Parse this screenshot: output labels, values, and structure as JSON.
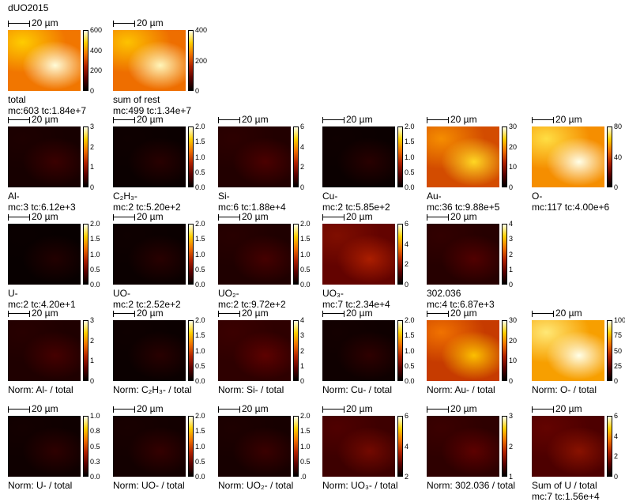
{
  "title": "dUO2015",
  "scale_label": "20 µm",
  "rows": [
    [
      {
        "label": "total",
        "stats": "mc:603 tc:1.84e+7",
        "ticks": [
          "600",
          "400",
          "200",
          "0"
        ]
      },
      {
        "label": "sum of rest",
        "stats": "mc:499 tc:1.34e+7",
        "ticks": [
          "400",
          "200",
          "0"
        ]
      }
    ],
    [
      {
        "label": "Al-",
        "stats": "mc:3 tc:6.12e+3",
        "ticks": [
          "3",
          "2",
          "1",
          "0"
        ]
      },
      {
        "label": "C₂H₃-",
        "stats": "mc:2 tc:5.20e+2",
        "ticks": [
          "2.0",
          "1.5",
          "1.0",
          "0.5",
          "0.0"
        ]
      },
      {
        "label": "Si-",
        "stats": "mc:6 tc:1.88e+4",
        "ticks": [
          "6",
          "4",
          "2",
          "0"
        ]
      },
      {
        "label": "Cu-",
        "stats": "mc:2 tc:5.85e+2",
        "ticks": [
          "2.0",
          "1.5",
          "1.0",
          "0.5",
          "0.0"
        ]
      },
      {
        "label": "Au-",
        "stats": "mc:36 tc:9.88e+5",
        "ticks": [
          "30",
          "20",
          "10",
          "0"
        ]
      },
      {
        "label": "O-",
        "stats": "mc:117 tc:4.00e+6",
        "ticks": [
          "80",
          "40",
          "0"
        ]
      }
    ],
    [
      {
        "label": "U-",
        "stats": "mc:2 tc:4.20e+1",
        "ticks": [
          "2.0",
          "1.5",
          "1.0",
          "0.5",
          "0.0"
        ]
      },
      {
        "label": "UO-",
        "stats": "mc:2 tc:2.52e+2",
        "ticks": [
          "2.0",
          "1.5",
          "1.0",
          "0.5",
          "0.0"
        ]
      },
      {
        "label": "UO₂-",
        "stats": "mc:2 tc:9.72e+2",
        "ticks": [
          "2.0",
          "1.5",
          "1.0",
          "0.5",
          "0.0"
        ]
      },
      {
        "label": "UO₃-",
        "stats": "mc:7 tc:2.34e+4",
        "ticks": [
          "6",
          "4",
          "2",
          "0"
        ]
      },
      {
        "label": "302.036",
        "stats": "mc:4 tc:6.87e+3",
        "ticks": [
          "4",
          "3",
          "2",
          "1",
          "0"
        ]
      }
    ],
    [
      {
        "label": "Norm: Al- / total",
        "ticks": [
          "3",
          "2",
          "1",
          "0"
        ]
      },
      {
        "label": "Norm: C₂H₃- / total",
        "ticks": [
          "2.0",
          "1.5",
          "1.0",
          "0.5",
          "0.0"
        ]
      },
      {
        "label": "Norm: Si- / total",
        "ticks": [
          "4",
          "3",
          "2",
          "1",
          "0"
        ]
      },
      {
        "label": "Norm: Cu- / total",
        "ticks": [
          "2.0",
          "1.5",
          "1.0",
          "0.5",
          "0.0"
        ]
      },
      {
        "label": "Norm: Au- / total",
        "ticks": [
          "30",
          "20",
          "10",
          "0"
        ]
      },
      {
        "label": "Norm: O- / total",
        "ticks": [
          "100",
          "75",
          "50",
          "25",
          "0"
        ]
      }
    ],
    [
      {
        "label": "Norm: U- / total",
        "ticks": [
          "1.0",
          "0.8",
          "0.5",
          "0.3",
          "0.0"
        ]
      },
      {
        "label": "Norm: UO- / total",
        "ticks": [
          "2.0",
          "1.5",
          "1.0",
          "0.5",
          "0.0"
        ]
      },
      {
        "label": "Norm: UO₂- / total",
        "ticks": [
          "2.0",
          "1.5",
          "1.0",
          "0.5",
          ".0"
        ]
      },
      {
        "label": "Norm: UO₃- / total",
        "ticks": [
          "6",
          "4",
          "2"
        ]
      },
      {
        "label": "Norm: 302.036 / total",
        "ticks": [
          "3",
          "2",
          "1"
        ]
      },
      {
        "label": "Sum of U / total",
        "stats": "mc:7 tc:1.56e+4",
        "ticks": [
          "6",
          "4",
          "2",
          "0"
        ]
      }
    ]
  ]
}
